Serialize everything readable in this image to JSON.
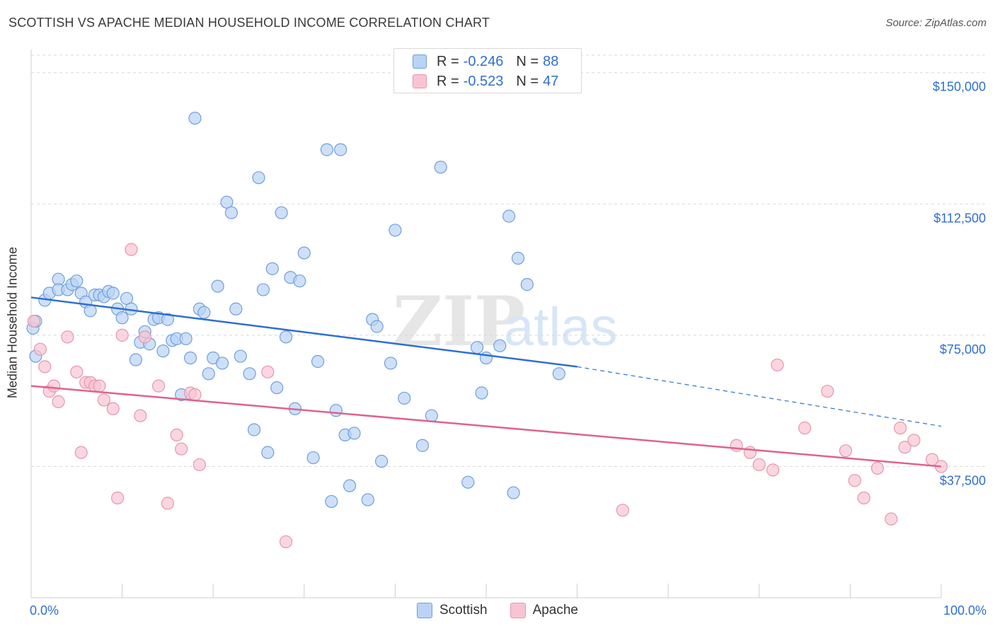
{
  "header": {
    "title": "SCOTTISH VS APACHE MEDIAN HOUSEHOLD INCOME CORRELATION CHART",
    "source": "Source: ZipAtlas.com"
  },
  "watermark": {
    "zip": "ZIP",
    "atlas": "atlas"
  },
  "legend": {
    "rows": [
      {
        "r_label": "R =",
        "r_value": "-0.246",
        "n_label": "N =",
        "n_value": "88"
      },
      {
        "r_label": "R =",
        "r_value": "-0.523",
        "n_label": "N =",
        "n_value": "47"
      }
    ]
  },
  "colors": {
    "scottish_fill": "#b9d3f5",
    "scottish_stroke": "#6f9fdc",
    "scottish_line": "#2e6fd1",
    "apache_fill": "#f8c4d3",
    "apache_stroke": "#e895ad",
    "apache_line": "#e0628b",
    "axis_text": "#2e6fd1",
    "grid": "#d8d8d8"
  },
  "chart_data": {
    "type": "scatter",
    "title": "SCOTTISH VS APACHE MEDIAN HOUSEHOLD INCOME CORRELATION CHART",
    "xlabel": "",
    "ylabel": "Median Household Income",
    "xlim": [
      0,
      100
    ],
    "ylim": [
      0,
      155000
    ],
    "x_tick_labels": [
      "0.0%",
      "100.0%"
    ],
    "y_ticks": [
      {
        "value": 37500,
        "label": "$37,500"
      },
      {
        "value": 75000,
        "label": "$75,000"
      },
      {
        "value": 112500,
        "label": "$112,500"
      },
      {
        "value": 150000,
        "label": "$150,000"
      }
    ],
    "grid": true,
    "legend_position": "top-center",
    "series": [
      {
        "name": "Scottish",
        "r": -0.246,
        "n": 88,
        "trend": {
          "x0": 0,
          "y0": 85800,
          "x1": 60,
          "y1": 66000,
          "dashed_to_x": 100,
          "dashed_to_y": 49000
        },
        "points": [
          [
            0.2,
            77000
          ],
          [
            0.5,
            69000
          ],
          [
            0.5,
            79000
          ],
          [
            1.5,
            85000
          ],
          [
            2,
            87000
          ],
          [
            3,
            91000
          ],
          [
            3,
            88000
          ],
          [
            4,
            88000
          ],
          [
            4.5,
            89500
          ],
          [
            5,
            90500
          ],
          [
            5.5,
            87000
          ],
          [
            6,
            84500
          ],
          [
            6.5,
            82000
          ],
          [
            7,
            86500
          ],
          [
            7.5,
            86500
          ],
          [
            8,
            86000
          ],
          [
            8.5,
            87500
          ],
          [
            9,
            87000
          ],
          [
            9.5,
            82500
          ],
          [
            10,
            80000
          ],
          [
            10.5,
            85500
          ],
          [
            11,
            82500
          ],
          [
            11.5,
            68000
          ],
          [
            12,
            73000
          ],
          [
            12.5,
            76000
          ],
          [
            13,
            72500
          ],
          [
            13.5,
            79500
          ],
          [
            14,
            80000
          ],
          [
            14.5,
            70500
          ],
          [
            15,
            79500
          ],
          [
            15.5,
            73500
          ],
          [
            16,
            74000
          ],
          [
            16.5,
            58000
          ],
          [
            17,
            74000
          ],
          [
            17.5,
            68500
          ],
          [
            18,
            137000
          ],
          [
            18.5,
            82500
          ],
          [
            19,
            81500
          ],
          [
            19.5,
            64000
          ],
          [
            20,
            68500
          ],
          [
            20.5,
            89000
          ],
          [
            21,
            67000
          ],
          [
            21.5,
            113000
          ],
          [
            22,
            110000
          ],
          [
            22.5,
            82500
          ],
          [
            23,
            69000
          ],
          [
            24,
            64000
          ],
          [
            24.5,
            48000
          ],
          [
            25,
            120000
          ],
          [
            25.5,
            88000
          ],
          [
            26,
            41500
          ],
          [
            26.5,
            94000
          ],
          [
            27,
            60000
          ],
          [
            27.5,
            110000
          ],
          [
            28,
            74500
          ],
          [
            28.5,
            91500
          ],
          [
            29,
            54000
          ],
          [
            29.5,
            90500
          ],
          [
            30,
            98500
          ],
          [
            31,
            40000
          ],
          [
            31.5,
            67500
          ],
          [
            32.5,
            128000
          ],
          [
            33,
            27500
          ],
          [
            33.5,
            53500
          ],
          [
            34,
            128000
          ],
          [
            34.5,
            46500
          ],
          [
            35,
            32000
          ],
          [
            35.5,
            47000
          ],
          [
            37,
            28000
          ],
          [
            37.5,
            79500
          ],
          [
            38,
            77500
          ],
          [
            38.5,
            39000
          ],
          [
            39.5,
            67000
          ],
          [
            40,
            105000
          ],
          [
            41,
            57000
          ],
          [
            43,
            43500
          ],
          [
            44,
            52000
          ],
          [
            45,
            123000
          ],
          [
            48,
            33000
          ],
          [
            49,
            71500
          ],
          [
            49.5,
            58500
          ],
          [
            50,
            68500
          ],
          [
            51.5,
            72000
          ],
          [
            52.5,
            109000
          ],
          [
            53,
            30000
          ],
          [
            53.5,
            97000
          ],
          [
            54.5,
            89500
          ],
          [
            58,
            64000
          ]
        ]
      },
      {
        "name": "Apache",
        "r": -0.523,
        "n": 47,
        "trend": {
          "x0": 0,
          "y0": 60500,
          "x1": 100,
          "y1": 37500
        },
        "points": [
          [
            0.3,
            79000
          ],
          [
            1,
            71000
          ],
          [
            1.5,
            66000
          ],
          [
            2,
            59000
          ],
          [
            2.5,
            60500
          ],
          [
            3,
            56000
          ],
          [
            4,
            74500
          ],
          [
            5,
            64500
          ],
          [
            5.5,
            41500
          ],
          [
            6,
            61500
          ],
          [
            6.5,
            61500
          ],
          [
            7,
            60500
          ],
          [
            7.5,
            60500
          ],
          [
            8,
            56500
          ],
          [
            9,
            54000
          ],
          [
            9.5,
            28500
          ],
          [
            10,
            75000
          ],
          [
            11,
            99500
          ],
          [
            12,
            52000
          ],
          [
            12.5,
            74500
          ],
          [
            14,
            60500
          ],
          [
            15,
            27000
          ],
          [
            16,
            46500
          ],
          [
            16.5,
            42500
          ],
          [
            17.5,
            58500
          ],
          [
            18,
            58000
          ],
          [
            18.5,
            38000
          ],
          [
            26,
            64500
          ],
          [
            28,
            16000
          ],
          [
            65,
            25000
          ],
          [
            77.5,
            43500
          ],
          [
            79,
            41500
          ],
          [
            80,
            38000
          ],
          [
            81.5,
            36500
          ],
          [
            82,
            66500
          ],
          [
            85,
            48500
          ],
          [
            87.5,
            59000
          ],
          [
            89.5,
            42000
          ],
          [
            90.5,
            33500
          ],
          [
            91.5,
            28500
          ],
          [
            93,
            37000
          ],
          [
            94.5,
            22500
          ],
          [
            95.5,
            48500
          ],
          [
            96,
            43000
          ],
          [
            97,
            45000
          ],
          [
            99,
            39500
          ],
          [
            100,
            37500
          ]
        ]
      }
    ]
  },
  "bottom_legend": {
    "items": [
      "Scottish",
      "Apache"
    ]
  }
}
